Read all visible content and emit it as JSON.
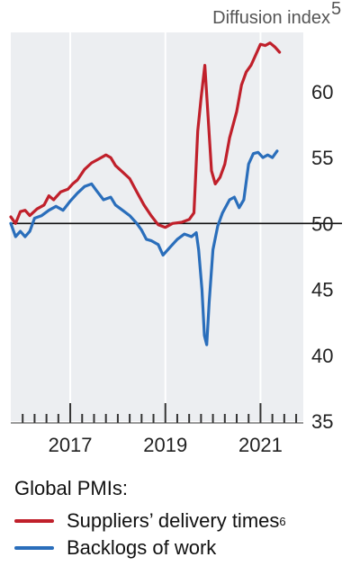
{
  "chart_data": {
    "type": "line",
    "unit_label": "Diffusion index",
    "unit_note": "5",
    "y_ticks": [
      35,
      40,
      45,
      50,
      55,
      60
    ],
    "ylim": [
      35,
      64.5
    ],
    "x_ticks": [
      {
        "value": 2017,
        "label": "2017"
      },
      {
        "value": 2019,
        "label": "2019"
      },
      {
        "value": 2021,
        "label": "2021"
      }
    ],
    "xlim": [
      2015.75,
      2021.9
    ],
    "reference_line": 50,
    "grid": "vertical",
    "legend_title": "Global PMIs:",
    "series": [
      {
        "name": "Suppliers’ delivery times",
        "note": "6",
        "color": "#c0202b",
        "points": [
          [
            2015.75,
            50.5
          ],
          [
            2015.85,
            50.0
          ],
          [
            2015.95,
            50.9
          ],
          [
            2016.05,
            51.0
          ],
          [
            2016.15,
            50.6
          ],
          [
            2016.3,
            51.1
          ],
          [
            2016.45,
            51.4
          ],
          [
            2016.55,
            52.1
          ],
          [
            2016.65,
            51.8
          ],
          [
            2016.8,
            52.4
          ],
          [
            2016.95,
            52.6
          ],
          [
            2017.05,
            53.0
          ],
          [
            2017.15,
            53.3
          ],
          [
            2017.3,
            54.1
          ],
          [
            2017.45,
            54.6
          ],
          [
            2017.6,
            54.9
          ],
          [
            2017.75,
            55.2
          ],
          [
            2017.85,
            55.0
          ],
          [
            2017.95,
            54.4
          ],
          [
            2018.1,
            53.9
          ],
          [
            2018.25,
            53.4
          ],
          [
            2018.4,
            52.4
          ],
          [
            2018.55,
            51.4
          ],
          [
            2018.7,
            50.6
          ],
          [
            2018.85,
            49.9
          ],
          [
            2019.0,
            49.7
          ],
          [
            2019.15,
            50.0
          ],
          [
            2019.35,
            50.1
          ],
          [
            2019.5,
            50.3
          ],
          [
            2019.6,
            50.8
          ],
          [
            2019.68,
            57.0
          ],
          [
            2019.75,
            59.5
          ],
          [
            2019.83,
            62.0
          ],
          [
            2019.9,
            58.0
          ],
          [
            2019.97,
            54.0
          ],
          [
            2020.05,
            53.0
          ],
          [
            2020.15,
            53.5
          ],
          [
            2020.25,
            54.5
          ],
          [
            2020.35,
            56.5
          ],
          [
            2020.5,
            58.5
          ],
          [
            2020.6,
            60.5
          ],
          [
            2020.7,
            61.5
          ],
          [
            2020.8,
            62.0
          ],
          [
            2020.9,
            62.8
          ],
          [
            2021.0,
            63.6
          ],
          [
            2021.1,
            63.5
          ],
          [
            2021.2,
            63.7
          ],
          [
            2021.3,
            63.4
          ],
          [
            2021.4,
            63.0
          ]
        ]
      },
      {
        "name": "Backlogs of work",
        "note": "",
        "color": "#2a6ebb",
        "points": [
          [
            2015.75,
            50.0
          ],
          [
            2015.85,
            49.0
          ],
          [
            2015.95,
            49.4
          ],
          [
            2016.05,
            49.0
          ],
          [
            2016.15,
            49.4
          ],
          [
            2016.25,
            50.4
          ],
          [
            2016.4,
            50.6
          ],
          [
            2016.55,
            51.0
          ],
          [
            2016.7,
            51.3
          ],
          [
            2016.85,
            51.0
          ],
          [
            2017.0,
            51.7
          ],
          [
            2017.15,
            52.3
          ],
          [
            2017.3,
            52.8
          ],
          [
            2017.45,
            53.0
          ],
          [
            2017.55,
            52.5
          ],
          [
            2017.7,
            51.8
          ],
          [
            2017.85,
            52.0
          ],
          [
            2017.95,
            51.4
          ],
          [
            2018.1,
            51.0
          ],
          [
            2018.25,
            50.6
          ],
          [
            2018.4,
            50.0
          ],
          [
            2018.5,
            49.5
          ],
          [
            2018.6,
            48.8
          ],
          [
            2018.7,
            48.7
          ],
          [
            2018.85,
            48.4
          ],
          [
            2018.95,
            47.6
          ],
          [
            2019.1,
            48.2
          ],
          [
            2019.25,
            48.8
          ],
          [
            2019.4,
            49.2
          ],
          [
            2019.55,
            49.0
          ],
          [
            2019.65,
            49.3
          ],
          [
            2019.7,
            48.0
          ],
          [
            2019.77,
            45.0
          ],
          [
            2019.82,
            41.5
          ],
          [
            2019.87,
            40.8
          ],
          [
            2019.92,
            44.0
          ],
          [
            2020.0,
            48.0
          ],
          [
            2020.1,
            49.8
          ],
          [
            2020.2,
            50.8
          ],
          [
            2020.35,
            51.8
          ],
          [
            2020.45,
            52.0
          ],
          [
            2020.55,
            51.2
          ],
          [
            2020.65,
            51.8
          ],
          [
            2020.75,
            54.5
          ],
          [
            2020.85,
            55.3
          ],
          [
            2020.95,
            55.4
          ],
          [
            2021.05,
            55.0
          ],
          [
            2021.15,
            55.2
          ],
          [
            2021.25,
            55.0
          ],
          [
            2021.35,
            55.5
          ]
        ]
      }
    ]
  }
}
